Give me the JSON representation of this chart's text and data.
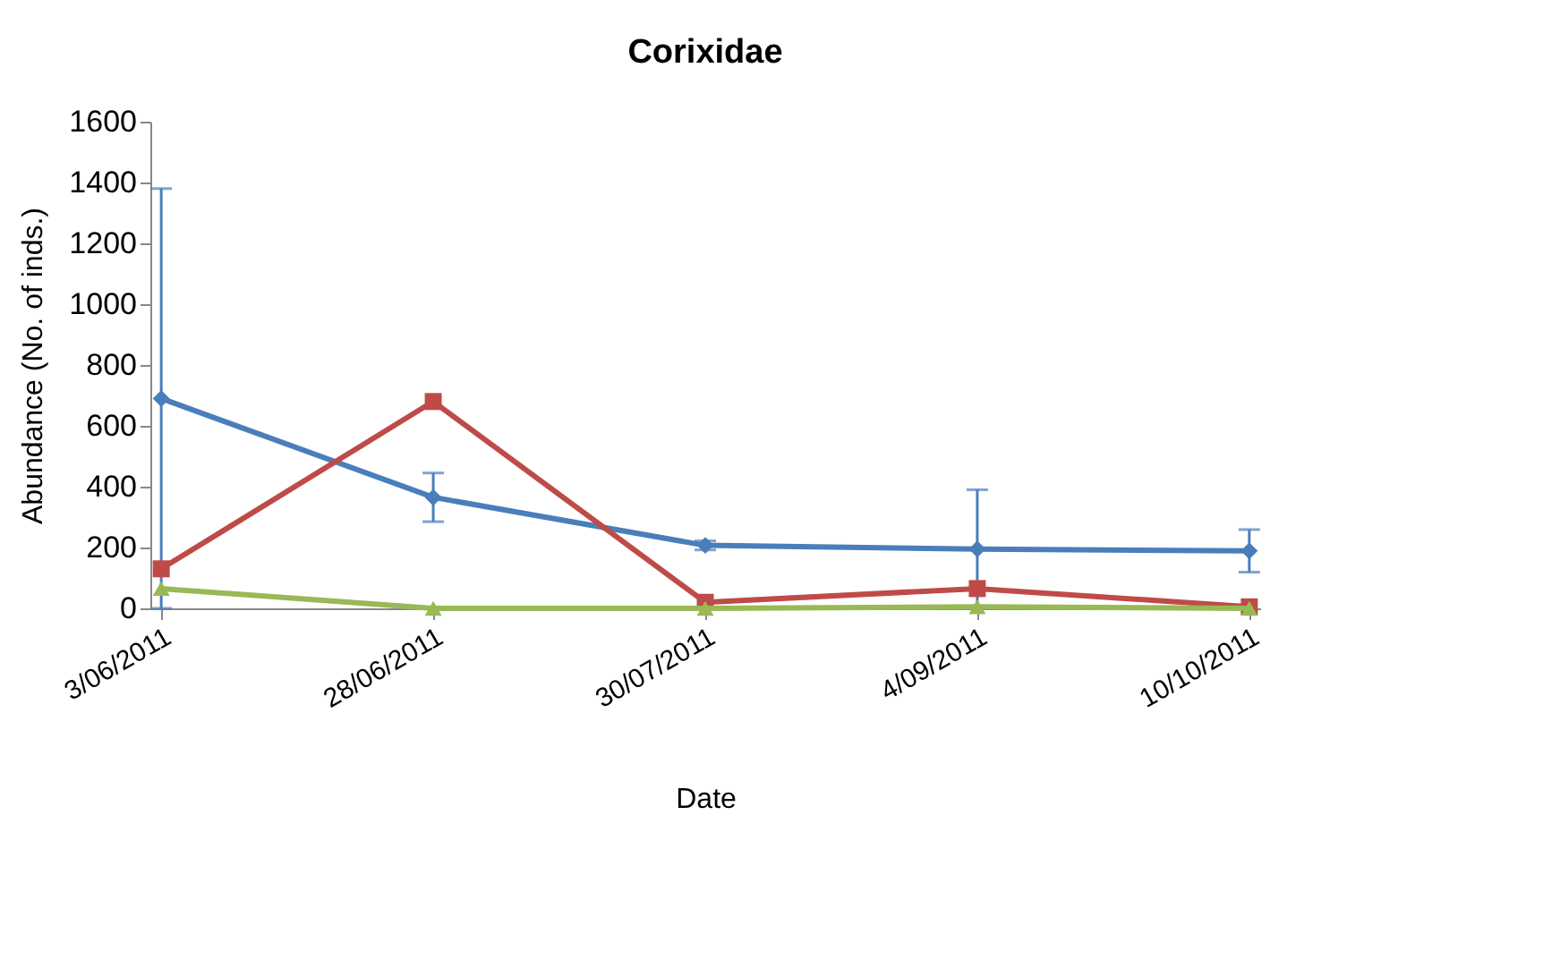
{
  "chart_data": {
    "type": "line",
    "title": "Corixidae",
    "xlabel": "Date",
    "ylabel": "Abundance (No. of inds.)",
    "categories": [
      "3/06/2011",
      "28/06/2011",
      "30/07/2011",
      "4/09/2011",
      "10/10/2011"
    ],
    "series": [
      {
        "color": "#4a7ebb",
        "marker": "diamond",
        "values": [
          690,
          365,
          207,
          195,
          189
        ],
        "errors": [
          690,
          80,
          15,
          195,
          70
        ]
      },
      {
        "color": "#be4b48",
        "marker": "square",
        "values": [
          130,
          680,
          20,
          65,
          5
        ]
      },
      {
        "color": "#98b954",
        "marker": "triangle",
        "values": [
          65,
          0,
          0,
          5,
          0
        ]
      }
    ],
    "ylim": [
      0,
      1600
    ],
    "yticks": [
      0,
      200,
      400,
      600,
      800,
      1000,
      1200,
      1400,
      1600
    ]
  }
}
